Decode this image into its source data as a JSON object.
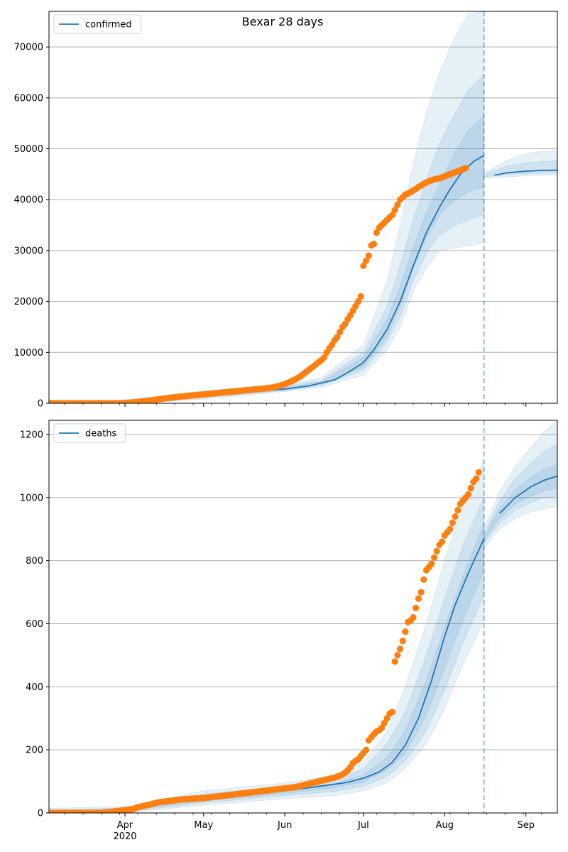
{
  "title": "Bexar 28 days",
  "colors": {
    "model": "#1f77b4",
    "observed": "#ff7f0e",
    "band": "#1f77b4",
    "grid": "#b0b0b0"
  },
  "x_axis": {
    "range": [
      "2020-03-03",
      "2020-09-13"
    ],
    "ticks": [
      {
        "date": "2020-04-01",
        "label": "Apr",
        "sublabel": "2020"
      },
      {
        "date": "2020-05-01",
        "label": "May"
      },
      {
        "date": "2020-06-01",
        "label": "Jun"
      },
      {
        "date": "2020-07-01",
        "label": "Jul"
      },
      {
        "date": "2020-08-01",
        "label": "Aug"
      },
      {
        "date": "2020-09-01",
        "label": "Sep"
      }
    ]
  },
  "chart_data": [
    {
      "type": "line",
      "legend": "confirmed",
      "legend_position": "top-left",
      "grid": "horizontal",
      "ylim": [
        0,
        77000
      ],
      "yticks": [
        "0",
        "10000",
        "20000",
        "30000",
        "40000",
        "50000",
        "60000",
        "70000"
      ],
      "forecast_date": "2020-08-16",
      "model": {
        "x": [
          "2020-03-03",
          "2020-03-15",
          "2020-04-01",
          "2020-04-15",
          "2020-05-01",
          "2020-05-15",
          "2020-06-01",
          "2020-06-10",
          "2020-06-20",
          "2020-06-25",
          "2020-07-01",
          "2020-07-05",
          "2020-07-10",
          "2020-07-15",
          "2020-07-20",
          "2020-07-25",
          "2020-07-30",
          "2020-08-03",
          "2020-08-07",
          "2020-08-12",
          "2020-08-16",
          "2020-08-20",
          "2020-08-25",
          "2020-09-01",
          "2020-09-07",
          "2020-09-13"
        ],
        "y": [
          0,
          100,
          300,
          900,
          1500,
          2100,
          2800,
          3400,
          4600,
          6000,
          8000,
          10500,
          14500,
          20000,
          27000,
          33500,
          38500,
          42000,
          45000,
          47500,
          48700,
          44800,
          45300,
          45600,
          45750,
          45800
        ]
      },
      "bands": [
        {
          "x": [
            "2020-03-03",
            "2020-04-01",
            "2020-05-01",
            "2020-06-01",
            "2020-06-15",
            "2020-07-01",
            "2020-07-10",
            "2020-07-15",
            "2020-07-20",
            "2020-07-25",
            "2020-07-30",
            "2020-08-05",
            "2020-08-10",
            "2020-08-16"
          ],
          "lo": [
            0,
            0,
            800,
            2300,
            3200,
            5500,
            10500,
            15000,
            22000,
            26500,
            30000,
            30500,
            31000,
            31500
          ],
          "hi": [
            200,
            700,
            2400,
            3800,
            5000,
            11500,
            24000,
            35000,
            47000,
            57000,
            65000,
            72000,
            76500,
            77000
          ]
        },
        {
          "x": [
            "2020-03-03",
            "2020-04-01",
            "2020-05-01",
            "2020-06-01",
            "2020-06-15",
            "2020-07-01",
            "2020-07-10",
            "2020-07-15",
            "2020-07-20",
            "2020-07-25",
            "2020-07-30",
            "2020-08-05",
            "2020-08-10",
            "2020-08-16"
          ],
          "lo": [
            0,
            100,
            1100,
            2500,
            3500,
            6500,
            12000,
            17000,
            24000,
            29500,
            33000,
            35000,
            36000,
            37000
          ],
          "hi": [
            150,
            550,
            2000,
            3400,
            4500,
            10000,
            19000,
            27000,
            36000,
            44000,
            51000,
            57000,
            61500,
            64500
          ]
        },
        {
          "x": [
            "2020-03-03",
            "2020-04-01",
            "2020-05-01",
            "2020-06-01",
            "2020-06-15",
            "2020-07-01",
            "2020-07-10",
            "2020-07-15",
            "2020-07-20",
            "2020-07-25",
            "2020-07-30",
            "2020-08-05",
            "2020-08-10",
            "2020-08-16"
          ],
          "lo": [
            0,
            150,
            1300,
            2600,
            3800,
            7200,
            13000,
            19000,
            26500,
            32500,
            37000,
            40000,
            41500,
            42500
          ],
          "hi": [
            120,
            450,
            1800,
            3100,
            4200,
            9000,
            16500,
            23000,
            30500,
            37500,
            43000,
            49500,
            53500,
            56500
          ]
        }
      ],
      "post_bands": [
        {
          "x": [
            "2020-08-16",
            "2020-08-25",
            "2020-09-01",
            "2020-09-07",
            "2020-09-13"
          ],
          "lo": [
            44300,
            44500,
            44700,
            44800,
            44800
          ],
          "hi": [
            45200,
            47800,
            49000,
            49500,
            49700
          ]
        },
        {
          "x": [
            "2020-08-16",
            "2020-08-25",
            "2020-09-01",
            "2020-09-07",
            "2020-09-13"
          ],
          "lo": [
            44500,
            44900,
            45100,
            45200,
            45300
          ],
          "hi": [
            45000,
            46600,
            47200,
            47500,
            47600
          ]
        }
      ],
      "observed": {
        "start": "2020-03-03",
        "y": [
          0,
          0,
          0,
          0,
          0,
          0,
          0,
          0,
          0,
          0,
          0,
          0,
          0,
          0,
          0,
          0,
          0,
          0,
          0,
          0,
          0,
          0,
          0,
          0,
          0,
          0,
          0,
          0,
          30,
          60,
          90,
          130,
          170,
          220,
          270,
          330,
          390,
          450,
          510,
          580,
          650,
          720,
          790,
          860,
          930,
          1000,
          1060,
          1120,
          1180,
          1240,
          1300,
          1350,
          1400,
          1450,
          1500,
          1550,
          1600,
          1650,
          1700,
          1750,
          1800,
          1850,
          1900,
          1950,
          2000,
          2050,
          2100,
          2150,
          2200,
          2250,
          2300,
          2350,
          2400,
          2450,
          2500,
          2550,
          2600,
          2650,
          2700,
          2750,
          2800,
          2850,
          2900,
          2950,
          3000,
          3100,
          3200,
          3300,
          3450,
          3600,
          3800,
          4000,
          4200,
          4450,
          4700,
          5000,
          5300,
          5700,
          6100,
          6500,
          6900,
          7300,
          7700,
          8100,
          8500,
          9000,
          10000,
          10800,
          11500,
          12400,
          13000,
          14000,
          15000,
          15600,
          16500,
          17300,
          18200,
          19100,
          20000,
          21000,
          27000,
          28000,
          29000,
          31000,
          31300,
          33500,
          34500,
          35000,
          35500,
          36000,
          36500,
          37000,
          38000,
          39000,
          40000,
          40500,
          41000,
          41200,
          41500,
          41800,
          42100,
          42500,
          42800,
          43100,
          43400,
          43600,
          43800,
          44000,
          44100,
          44200,
          44400,
          44600,
          44800,
          45000,
          45200,
          45400,
          45600,
          45800,
          46000,
          46200
        ]
      }
    },
    {
      "type": "line",
      "legend": "deaths",
      "legend_position": "top-left",
      "grid": "horizontal",
      "ylim": [
        0,
        1245
      ],
      "yticks": [
        "0",
        "200",
        "400",
        "600",
        "800",
        "1000",
        "1200"
      ],
      "forecast_date": "2020-08-16",
      "model": {
        "x": [
          "2020-03-03",
          "2020-03-20",
          "2020-04-01",
          "2020-04-15",
          "2020-05-01",
          "2020-05-15",
          "2020-06-01",
          "2020-06-15",
          "2020-06-25",
          "2020-07-01",
          "2020-07-07",
          "2020-07-12",
          "2020-07-17",
          "2020-07-22",
          "2020-07-27",
          "2020-08-01",
          "2020-08-05",
          "2020-08-10",
          "2020-08-16",
          "2020-08-22",
          "2020-08-28",
          "2020-09-03",
          "2020-09-08",
          "2020-09-13"
        ],
        "y": [
          0,
          2,
          10,
          30,
          45,
          55,
          70,
          85,
          97,
          110,
          130,
          160,
          215,
          300,
          420,
          560,
          660,
          760,
          870,
          950,
          1000,
          1035,
          1055,
          1068
        ]
      },
      "bands": [
        {
          "x": [
            "2020-03-03",
            "2020-04-01",
            "2020-05-01",
            "2020-06-01",
            "2020-06-20",
            "2020-07-01",
            "2020-07-10",
            "2020-07-17",
            "2020-07-25",
            "2020-08-01",
            "2020-08-08",
            "2020-08-16"
          ],
          "lo": [
            0,
            0,
            25,
            45,
            55,
            70,
            95,
            140,
            220,
            330,
            470,
            610
          ],
          "hi": [
            15,
            20,
            70,
            95,
            120,
            160,
            260,
            400,
            600,
            800,
            980,
            1120
          ]
        },
        {
          "x": [
            "2020-03-03",
            "2020-04-01",
            "2020-05-01",
            "2020-06-01",
            "2020-06-20",
            "2020-07-01",
            "2020-07-10",
            "2020-07-17",
            "2020-07-25",
            "2020-08-01",
            "2020-08-08",
            "2020-08-16"
          ],
          "lo": [
            0,
            3,
            32,
            55,
            68,
            85,
            115,
            165,
            260,
            390,
            540,
            690
          ],
          "hi": [
            10,
            16,
            60,
            85,
            105,
            140,
            220,
            320,
            500,
            680,
            850,
            1000
          ]
        },
        {
          "x": [
            "2020-03-03",
            "2020-04-01",
            "2020-05-01",
            "2020-06-01",
            "2020-06-20",
            "2020-07-01",
            "2020-07-10",
            "2020-07-17",
            "2020-07-25",
            "2020-08-01",
            "2020-08-08",
            "2020-08-16"
          ],
          "lo": [
            0,
            6,
            38,
            62,
            80,
            98,
            135,
            190,
            310,
            460,
            610,
            770
          ],
          "hi": [
            6,
            12,
            52,
            78,
            93,
            120,
            175,
            260,
            420,
            590,
            750,
            920
          ]
        }
      ],
      "post_bands": [
        {
          "x": [
            "2020-08-16",
            "2020-08-22",
            "2020-08-28",
            "2020-09-03",
            "2020-09-08",
            "2020-09-13"
          ],
          "lo": [
            840,
            900,
            935,
            955,
            965,
            970
          ],
          "hi": [
            900,
            1020,
            1100,
            1160,
            1210,
            1245
          ]
        },
        {
          "x": [
            "2020-08-16",
            "2020-08-22",
            "2020-08-28",
            "2020-09-03",
            "2020-09-08",
            "2020-09-13"
          ],
          "lo": [
            855,
            920,
            960,
            985,
            1000,
            1005
          ],
          "hi": [
            885,
            990,
            1060,
            1110,
            1145,
            1170
          ]
        },
        {
          "x": [
            "2020-08-16",
            "2020-08-22",
            "2020-08-28",
            "2020-09-03",
            "2020-09-08",
            "2020-09-13"
          ],
          "lo": [
            865,
            935,
            980,
            1005,
            1020,
            1030
          ],
          "hi": [
            875,
            965,
            1025,
            1065,
            1090,
            1105
          ]
        }
      ],
      "observed": {
        "start": "2020-03-03",
        "y": [
          0,
          0,
          0,
          0,
          0,
          0,
          0,
          0,
          0,
          0,
          0,
          0,
          0,
          0,
          0,
          0,
          0,
          0,
          0,
          0,
          0,
          1,
          2,
          3,
          4,
          5,
          6,
          7,
          8,
          9,
          10,
          11,
          12,
          15,
          18,
          20,
          22,
          24,
          26,
          28,
          30,
          32,
          34,
          35,
          36,
          37,
          38,
          39,
          40,
          41,
          42,
          43,
          44,
          44,
          45,
          45,
          46,
          46,
          47,
          47,
          48,
          49,
          50,
          51,
          52,
          53,
          54,
          55,
          56,
          57,
          58,
          59,
          60,
          61,
          62,
          63,
          64,
          65,
          66,
          67,
          68,
          69,
          70,
          71,
          72,
          73,
          74,
          75,
          76,
          77,
          78,
          79,
          80,
          81,
          82,
          84,
          86,
          88,
          90,
          92,
          94,
          96,
          98,
          100,
          102,
          104,
          106,
          108,
          110,
          112,
          115,
          118,
          122,
          128,
          135,
          145,
          158,
          165,
          170,
          180,
          190,
          200,
          230,
          240,
          250,
          258,
          262,
          270,
          285,
          300,
          315,
          320,
          480,
          500,
          520,
          545,
          575,
          605,
          610,
          620,
          650,
          680,
          700,
          740,
          770,
          780,
          790,
          810,
          830,
          850,
          860,
          880,
          890,
          900,
          920,
          940,
          960,
          980,
          990,
          1000,
          1010,
          1030,
          1050,
          1060,
          1080
        ]
      }
    }
  ]
}
